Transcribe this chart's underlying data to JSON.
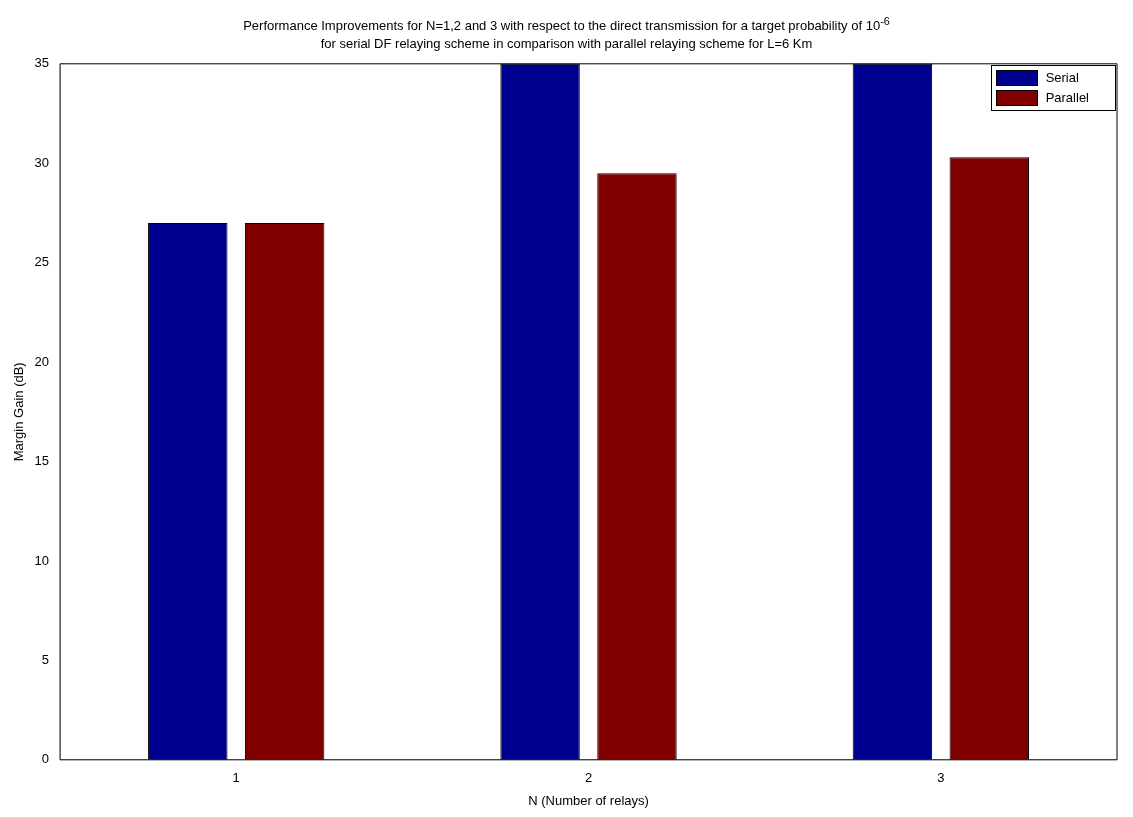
{
  "chart_data": {
    "type": "bar",
    "title": "Performance Improvements for N=1,2 and 3 with respect to the direct transmission for a target probability of 10$^{-6}$\nfor serial DF relaying scheme in comparison with parallel relaying scheme for L=6 Km",
    "xlabel": "N (Number of relays)",
    "ylabel": "Margin Gain (dB)",
    "categories": [
      "1",
      "2",
      "3"
    ],
    "series": [
      {
        "name": "Serial",
        "color": "#00008f",
        "values": [
          27,
          35,
          35
        ]
      },
      {
        "name": "Parallel",
        "color": "#800000",
        "values": [
          27,
          29.5,
          30.3
        ]
      }
    ],
    "ylim": [
      0,
      35
    ],
    "yticks": [
      0,
      5,
      10,
      15,
      20,
      25,
      30,
      35
    ],
    "grid": false,
    "legend": "top right"
  }
}
